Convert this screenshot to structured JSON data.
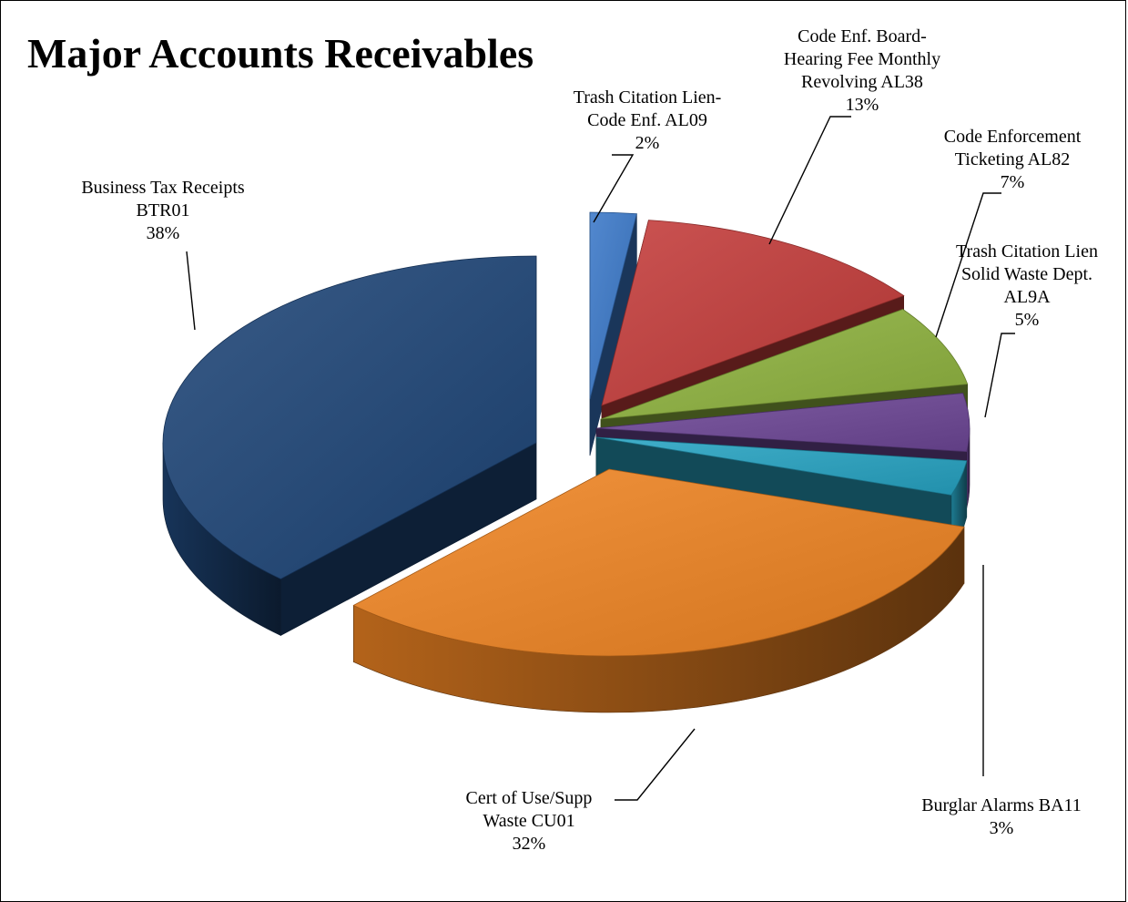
{
  "chart_data": {
    "type": "pie",
    "title": "Major Accounts Receivables",
    "three_d": true,
    "exploded": true,
    "legend": "none",
    "slices": [
      {
        "label_lines": [
          "Trash Citation Lien-",
          "Code Enf. AL09"
        ],
        "percent_text": "2%",
        "value": 2,
        "color": "#3a78c8"
      },
      {
        "label_lines": [
          "Code Enf. Board-",
          "Hearing Fee Monthly",
          "Revolving AL38"
        ],
        "percent_text": "13%",
        "value": 13,
        "color": "#c43c3a"
      },
      {
        "label_lines": [
          "Code Enforcement",
          "Ticketing AL82"
        ],
        "percent_text": "7%",
        "value": 7,
        "color": "#8fb33f"
      },
      {
        "label_lines": [
          "Trash Citation Lien",
          "Solid Waste Dept.",
          "AL9A"
        ],
        "percent_text": "5%",
        "value": 5,
        "color": "#6d4796"
      },
      {
        "label_lines": [
          "Burglar Alarms BA11"
        ],
        "percent_text": "3%",
        "value": 3,
        "color": "#27a4c3"
      },
      {
        "label_lines": [
          "Cert of Use/Supp",
          "Waste  CU01"
        ],
        "percent_text": "32%",
        "value": 32,
        "color": "#ef8422"
      },
      {
        "label_lines": [
          "Business Tax Receipts",
          "BTR01"
        ],
        "percent_text": "38%",
        "value": 38,
        "color": "#1e4577"
      }
    ]
  }
}
